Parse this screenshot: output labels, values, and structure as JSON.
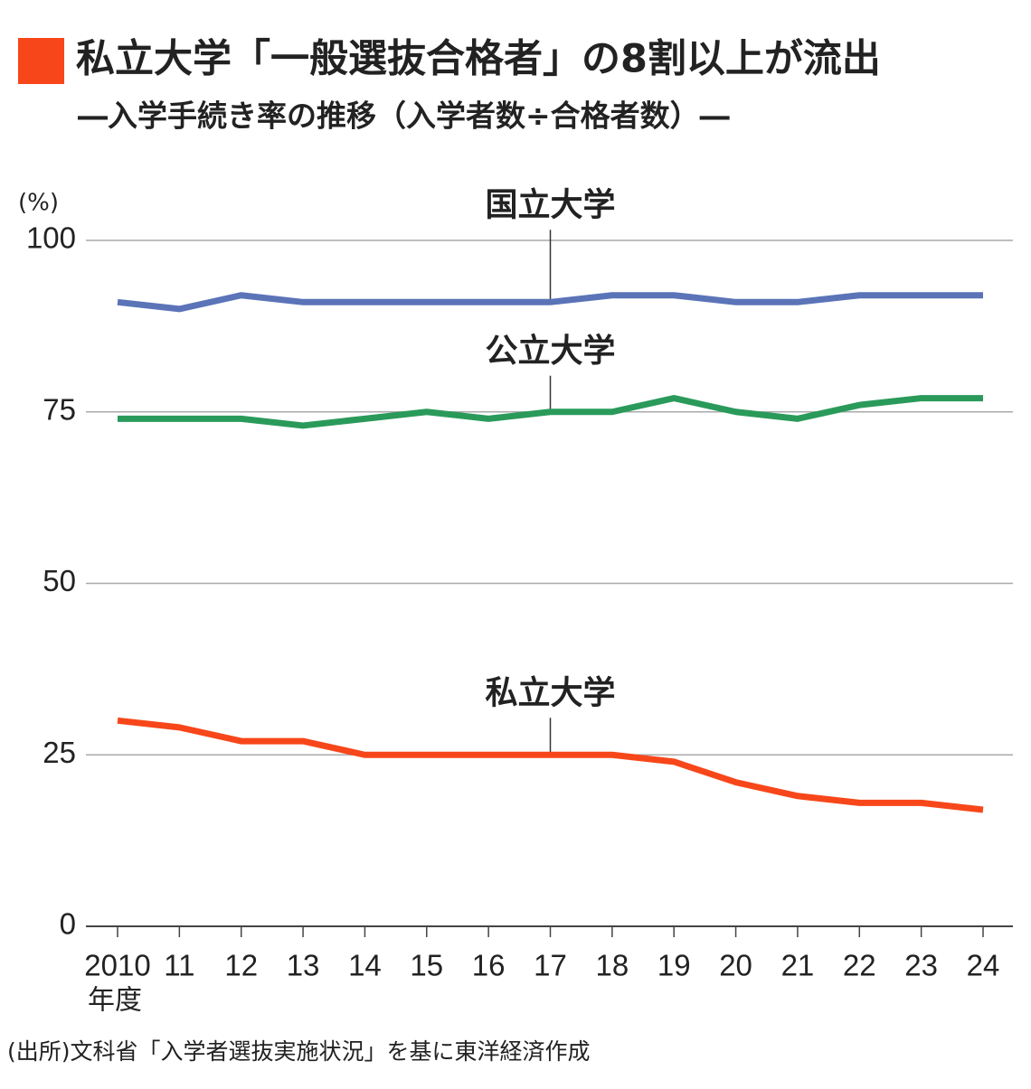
{
  "chart_data": {
    "type": "line",
    "title": "私立大学「一般選抜合格者」の8割以上が流出",
    "subtitle": "―入学手続き率の推移（入学者数÷合格者数）―",
    "y_label": "(%)",
    "x_label": "年度",
    "source": "(出所)文科省「入学者選抜実施状況」を基に東洋経済作成",
    "categories": [
      "2010",
      "11",
      "12",
      "13",
      "14",
      "15",
      "16",
      "17",
      "18",
      "19",
      "20",
      "21",
      "22",
      "23",
      "24"
    ],
    "series": [
      {
        "name": "国立大学",
        "color": "#5b74b8",
        "values": [
          91,
          90,
          92,
          91,
          91,
          91,
          91,
          91,
          92,
          92,
          91,
          91,
          92,
          92,
          92
        ]
      },
      {
        "name": "公立大学",
        "color": "#2a9a5a",
        "values": [
          74,
          74,
          74,
          73,
          74,
          75,
          74,
          75,
          75,
          77,
          75,
          74,
          76,
          77,
          77
        ]
      },
      {
        "name": "私立大学",
        "color": "#f7471a",
        "values": [
          30,
          29,
          27,
          27,
          25,
          25,
          25,
          25,
          25,
          24,
          21,
          19,
          18,
          18,
          17
        ]
      }
    ],
    "ylim": [
      0,
      100
    ],
    "yticks": [
      0,
      25,
      50,
      75,
      100
    ],
    "grid": true
  }
}
